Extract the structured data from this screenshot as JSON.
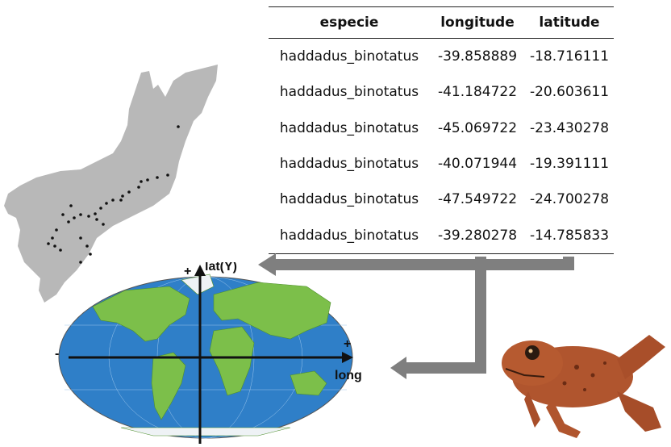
{
  "table": {
    "headers": [
      "especie",
      "longitude",
      "latitude"
    ],
    "rows": [
      [
        "haddadus_binotatus",
        "-39.858889",
        "-18.716111"
      ],
      [
        "haddadus_binotatus",
        "-41.184722",
        "-20.603611"
      ],
      [
        "haddadus_binotatus",
        "-45.069722",
        "-23.430278"
      ],
      [
        "haddadus_binotatus",
        "-40.071944",
        "-19.391111"
      ],
      [
        "haddadus_binotatus",
        "-47.549722",
        "-24.700278"
      ],
      [
        "haddadus_binotatus",
        "-39.280278",
        "-14.785833"
      ]
    ]
  },
  "axes": {
    "y_label": "lat(Y)",
    "x_label": "long (X)",
    "plus": "+",
    "minus": "-"
  },
  "colors": {
    "arrow": "#7f7f7f",
    "land_gray": "#b8b8b8",
    "ocean": "#2f7fc8",
    "frog": "#b0552e"
  },
  "icons": {
    "occurrence_map": "occurrence-map-icon",
    "world_map": "world-map-icon",
    "frog": "frog-photo-icon"
  }
}
